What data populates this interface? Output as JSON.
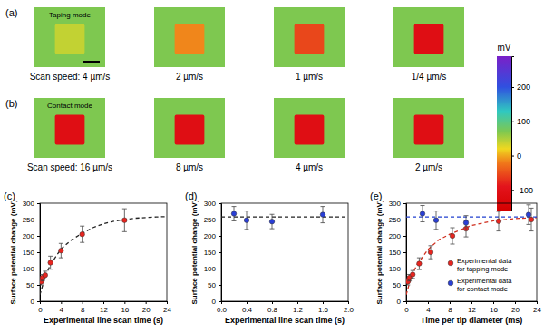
{
  "chart_data": [
    {
      "type": "heatmap",
      "title": "(a)",
      "label": "Taping mode",
      "images": [
        {
          "caption": "Scan speed: 4 µm/s",
          "background": 70,
          "square": 40
        },
        {
          "caption": "2 µm/s",
          "background": 70,
          "square": -15
        },
        {
          "caption": "1 µm/s",
          "background": 70,
          "square": -55
        },
        {
          "caption": "1/4 µm/s",
          "background": 70,
          "square": -110
        }
      ],
      "colorbar": {
        "label": "mV",
        "range": [
          -160,
          290
        ],
        "ticks": [
          -100,
          0,
          100,
          200
        ]
      }
    },
    {
      "type": "heatmap",
      "title": "(b)",
      "label": "Contact mode",
      "images": [
        {
          "caption": "Scan speed: 16 µm/s",
          "background": 70,
          "square": -110
        },
        {
          "caption": "8 µm/s",
          "background": 70,
          "square": -110
        },
        {
          "caption": "4 µm/s",
          "background": 70,
          "square": -110
        },
        {
          "caption": "2 µm/s",
          "background": 70,
          "square": -110
        }
      ]
    },
    {
      "type": "scatter",
      "title": "(c)",
      "x_label": "Experimental line scan time (s)",
      "y_label": "Surface potential change (mV)",
      "xlim": [
        0,
        24
      ],
      "xticks": [
        0,
        4,
        8,
        12,
        16,
        20,
        24
      ],
      "ylim": [
        0,
        300
      ],
      "yticks": [
        0,
        50,
        100,
        150,
        200,
        250,
        300
      ],
      "series": [
        {
          "type": "scatter",
          "marker": "circle",
          "color": "#e8251f",
          "x": [
            0.25,
            0.5,
            1,
            2,
            4,
            8,
            16
          ],
          "values": [
            60,
            72,
            80,
            118,
            155,
            205,
            248
          ],
          "errors": [
            10,
            10,
            12,
            20,
            22,
            25,
            35
          ]
        },
        {
          "type": "line",
          "line_style": "dashed",
          "color": "#222222",
          "x": [
            0,
            1,
            2,
            4,
            6,
            8,
            10,
            12,
            14,
            16,
            18,
            20,
            22,
            24
          ],
          "values": [
            20,
            75,
            112,
            160,
            188,
            208,
            225,
            237,
            245,
            250,
            254,
            256,
            258,
            259
          ]
        }
      ]
    },
    {
      "type": "scatter",
      "title": "(d)",
      "x_label": "Experimental line scan time (s)",
      "y_label": "Surface potential change (mV)",
      "xlim": [
        0,
        2
      ],
      "xticks": [
        {
          "value": 0,
          "label": "0.0"
        },
        0.4,
        0.8,
        1.2,
        1.6,
        {
          "value": 2,
          "label": "2.0"
        }
      ],
      "ylim": [
        0,
        300
      ],
      "yticks": [
        0,
        50,
        100,
        150,
        200,
        250,
        300
      ],
      "series": [
        {
          "type": "scatter",
          "marker": "circle",
          "color": "#2a3fd6",
          "x": [
            0.2,
            0.4,
            0.8,
            1.6
          ],
          "values": [
            268,
            248,
            244,
            265
          ],
          "errors": [
            22,
            28,
            22,
            25
          ]
        },
        {
          "type": "line",
          "line_style": "dashed",
          "color": "#222222",
          "x": [
            0,
            2
          ],
          "values": [
            258,
            258
          ]
        }
      ]
    },
    {
      "type": "scatter",
      "title": "(e)",
      "x_label": "Time per tip diameter (ms)",
      "y_label": "Surface potential change (mV)",
      "xlim": [
        0,
        24
      ],
      "xticks": [
        0,
        4,
        8,
        12,
        16,
        20,
        24
      ],
      "ylim": [
        0,
        300
      ],
      "yticks": [
        0,
        50,
        100,
        150,
        200,
        250,
        300
      ],
      "legend": "lower right",
      "series": [
        {
          "type": "scatter",
          "marker": "circle",
          "color": "#e8251f",
          "name": "Experimental data for tapping mode",
          "x": [
            0.3,
            0.6,
            1.2,
            2.4,
            4.5,
            8.5,
            11,
            17,
            23
          ],
          "values": [
            60,
            72,
            82,
            115,
            150,
            200,
            222,
            245,
            250
          ],
          "errors": [
            10,
            10,
            12,
            18,
            20,
            25,
            25,
            30,
            35
          ]
        },
        {
          "type": "scatter",
          "marker": "circle",
          "color": "#2a3fd6",
          "name": "Experimental data for contact mode",
          "x": [
            3,
            5.5,
            11,
            22.5
          ],
          "values": [
            268,
            248,
            240,
            265
          ],
          "errors": [
            25,
            28,
            22,
            30
          ]
        },
        {
          "type": "line",
          "line_style": "dashed",
          "color": "#d03020",
          "x": [
            0,
            1,
            2,
            4,
            6,
            8,
            12,
            16,
            20,
            24
          ],
          "values": [
            20,
            78,
            112,
            158,
            188,
            205,
            232,
            246,
            253,
            256
          ]
        },
        {
          "type": "line",
          "line_style": "dashed",
          "color": "#2040d0",
          "x": [
            0,
            24
          ],
          "values": [
            258,
            258
          ]
        }
      ]
    }
  ]
}
